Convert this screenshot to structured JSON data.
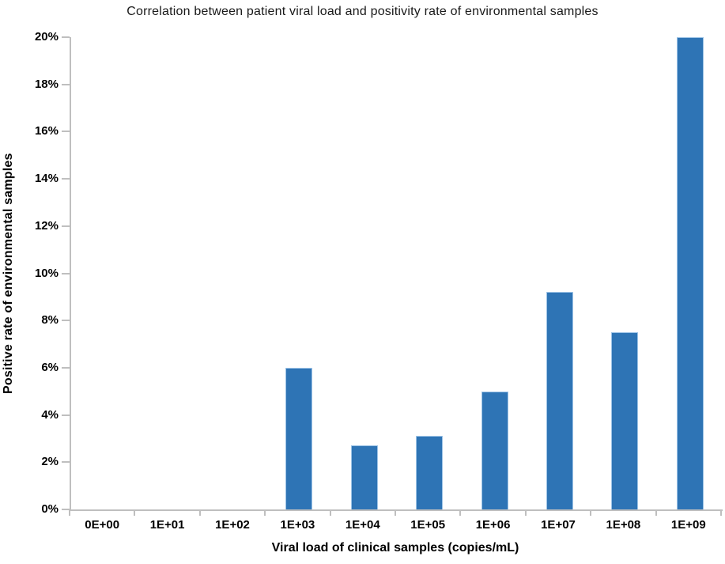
{
  "chart_data": {
    "type": "bar",
    "title": "Correlation between patient viral load and positivity rate of environmental samples",
    "xlabel": "Viral load of clinical samples (copies/mL)",
    "ylabel": "Positive rate of environmental samples",
    "categories": [
      "0E+00",
      "1E+01",
      "1E+02",
      "1E+03",
      "1E+04",
      "1E+05",
      "1E+06",
      "1E+07",
      "1E+08",
      "1E+09"
    ],
    "values": [
      0,
      0,
      0,
      6.0,
      2.7,
      3.1,
      5.0,
      9.2,
      7.5,
      20.0
    ],
    "values_unit": "%",
    "ylim": [
      0,
      20
    ],
    "ytick_step": 2,
    "yticks": [
      "0%",
      "2%",
      "4%",
      "6%",
      "8%",
      "10%",
      "12%",
      "14%",
      "16%",
      "18%",
      "20%"
    ],
    "grid": false,
    "legend": "none",
    "colors": {
      "bar_fill": "#2e74b5",
      "bar_border": "#9dc3e6",
      "axis_line": "#bfbfbf",
      "tick_label": "#000000",
      "title_text": "#1a1a1a"
    }
  }
}
